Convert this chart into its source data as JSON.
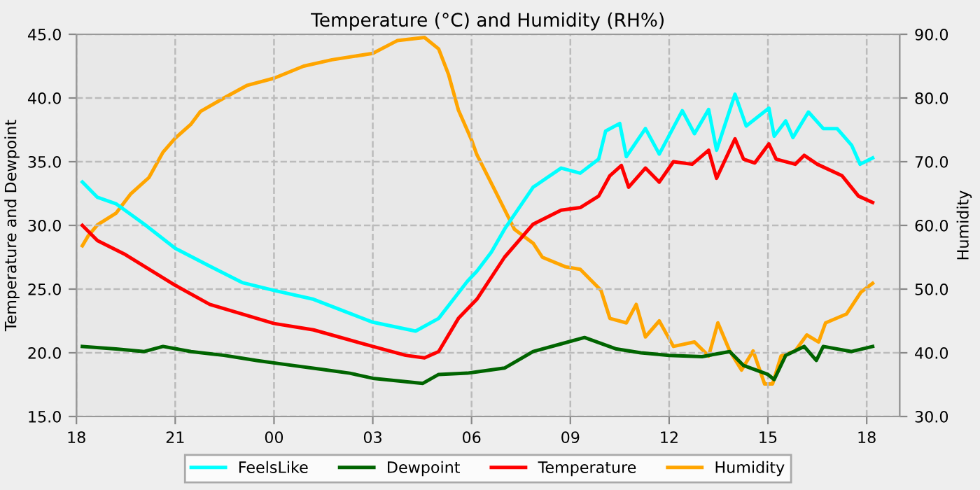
{
  "chart_data": {
    "type": "line",
    "title": "Temperature (°C) and Humidity (RH%)",
    "ylabel": "Temperature and Dewpoint",
    "y2label": "Humidity",
    "xlim": [
      18,
      43
    ],
    "xticks": [
      {
        "value": 18,
        "label": "18"
      },
      {
        "value": 21,
        "label": "21"
      },
      {
        "value": 24,
        "label": "00"
      },
      {
        "value": 27,
        "label": "03"
      },
      {
        "value": 30,
        "label": "06"
      },
      {
        "value": 33,
        "label": "09"
      },
      {
        "value": 36,
        "label": "12"
      },
      {
        "value": 39,
        "label": "15"
      },
      {
        "value": 42,
        "label": "18"
      }
    ],
    "ylim": [
      15,
      45
    ],
    "yticks": [
      {
        "value": 15,
        "label": "15.0"
      },
      {
        "value": 20,
        "label": "20.0"
      },
      {
        "value": 25,
        "label": "25.0"
      },
      {
        "value": 30,
        "label": "30.0"
      },
      {
        "value": 35,
        "label": "35.0"
      },
      {
        "value": 40,
        "label": "40.0"
      },
      {
        "value": 45,
        "label": "45.0"
      }
    ],
    "y2lim": [
      30,
      90
    ],
    "y2ticks": [
      {
        "value": 30,
        "label": "30.0"
      },
      {
        "value": 40,
        "label": "40.0"
      },
      {
        "value": 50,
        "label": "50.0"
      },
      {
        "value": 60,
        "label": "60.0"
      },
      {
        "value": 70,
        "label": "70.0"
      },
      {
        "value": 80,
        "label": "80.0"
      },
      {
        "value": 90,
        "label": "90.0"
      }
    ],
    "grid": true,
    "legend": "bottom",
    "marker": "none",
    "line_style": "solid",
    "series": [
      {
        "name": "FeelsLike",
        "color": "#00ffff",
        "x": [
          18.18,
          18.64,
          19.2,
          20.06,
          21,
          22.05,
          23.05,
          24,
          25.2,
          26.3,
          27,
          28.3,
          29.0,
          29.87,
          30.16,
          30.6,
          31.0,
          31.87,
          32.72,
          33.3,
          33.86,
          34.07,
          34.5,
          34.7,
          35.28,
          35.7,
          36.4,
          36.77,
          37.2,
          37.44,
          38.0,
          38.34,
          39.03,
          39.19,
          39.54,
          39.76,
          40.23,
          40.68,
          41.1,
          41.54,
          41.8,
          42.18
        ],
        "values": [
          33.4,
          32.2,
          31.7,
          30.1,
          28.2,
          26.8,
          25.5,
          24.9,
          24.2,
          23.1,
          22.4,
          21.7,
          22.7,
          25.6,
          26.4,
          27.9,
          29.7,
          33.0,
          34.5,
          34.1,
          35.2,
          37.4,
          38.0,
          35.4,
          37.6,
          35.6,
          39.0,
          37.2,
          39.1,
          35.9,
          40.3,
          37.8,
          39.2,
          37.0,
          38.2,
          36.9,
          38.9,
          37.6,
          37.6,
          36.3,
          34.8,
          35.3
        ]
      },
      {
        "name": "Dewpoint",
        "color": "#006400",
        "x": [
          18.18,
          19.2,
          20.06,
          20.63,
          21.48,
          22.48,
          23.47,
          24.3,
          25.47,
          26.3,
          27,
          27.74,
          28.52,
          29.0,
          29.87,
          30.16,
          31.0,
          31.87,
          32.72,
          33.43,
          34.4,
          35.14,
          36,
          37.0,
          37.84,
          38.26,
          39.0,
          39.19,
          39.54,
          40.1,
          40.47,
          40.68,
          41.54,
          42.18
        ],
        "values": [
          20.5,
          20.3,
          20.1,
          20.5,
          20.1,
          19.8,
          19.4,
          19.1,
          18.7,
          18.4,
          18.0,
          17.8,
          17.6,
          18.3,
          18.4,
          18.5,
          18.8,
          20.1,
          20.7,
          21.2,
          20.3,
          20.0,
          19.8,
          19.7,
          20.1,
          19.0,
          18.3,
          17.9,
          19.8,
          20.5,
          19.4,
          20.5,
          20.1,
          20.5
        ]
      },
      {
        "name": "Temperature",
        "color": "#ff0000",
        "x": [
          18.18,
          18.64,
          19.49,
          21,
          22.05,
          24,
          25.2,
          27,
          28.0,
          28.57,
          29.0,
          29.6,
          30.16,
          31.0,
          31.87,
          32.72,
          33.3,
          33.86,
          34.2,
          34.55,
          34.77,
          35.28,
          35.7,
          36.13,
          36.7,
          37.2,
          37.44,
          38.0,
          38.26,
          38.6,
          39.03,
          39.25,
          39.83,
          40.1,
          40.5,
          41.25,
          41.75,
          42.18
        ],
        "values": [
          30.0,
          28.8,
          27.7,
          25.3,
          23.8,
          22.3,
          21.8,
          20.5,
          19.8,
          19.6,
          20.1,
          22.7,
          24.2,
          27.5,
          30.1,
          31.2,
          31.4,
          32.3,
          33.9,
          34.7,
          33.0,
          34.5,
          33.4,
          35.0,
          34.8,
          35.9,
          33.7,
          36.8,
          35.2,
          34.9,
          36.4,
          35.2,
          34.8,
          35.5,
          34.8,
          33.9,
          32.3,
          31.8
        ]
      },
      {
        "name": "Humidity",
        "color": "#ffa500",
        "axis": "y2",
        "x": [
          18.18,
          18.35,
          18.64,
          19.2,
          19.64,
          20.2,
          20.63,
          21,
          21.48,
          21.77,
          22.48,
          23.19,
          24,
          24.9,
          25.76,
          27,
          27.74,
          28.57,
          29.0,
          29.3,
          29.6,
          30.0,
          30.16,
          30.73,
          31.3,
          31.87,
          32.15,
          32.85,
          33.3,
          33.93,
          34.2,
          34.7,
          35.0,
          35.28,
          35.7,
          36.13,
          36.77,
          37.2,
          37.48,
          37.84,
          38.2,
          38.55,
          38.9,
          39.14,
          39.4,
          39.83,
          40.18,
          40.54,
          40.75,
          41.39,
          41.82,
          42.18
        ],
        "values": [
          56.8,
          58.3,
          60.1,
          61.9,
          64.9,
          67.5,
          71.5,
          73.7,
          75.9,
          77.9,
          80.0,
          82.0,
          83.1,
          85.0,
          86.0,
          87.0,
          89.0,
          89.5,
          87.7,
          83.7,
          78.1,
          73.4,
          71.1,
          65.3,
          59.4,
          57.2,
          55.0,
          53.5,
          53.1,
          49.8,
          45.4,
          44.7,
          47.6,
          42.5,
          45.0,
          41.0,
          41.7,
          39.5,
          44.7,
          40.3,
          37.3,
          40.3,
          35.1,
          35.1,
          39.5,
          40.3,
          42.8,
          41.7,
          44.7,
          46.1,
          49.5,
          50.9
        ]
      }
    ]
  }
}
